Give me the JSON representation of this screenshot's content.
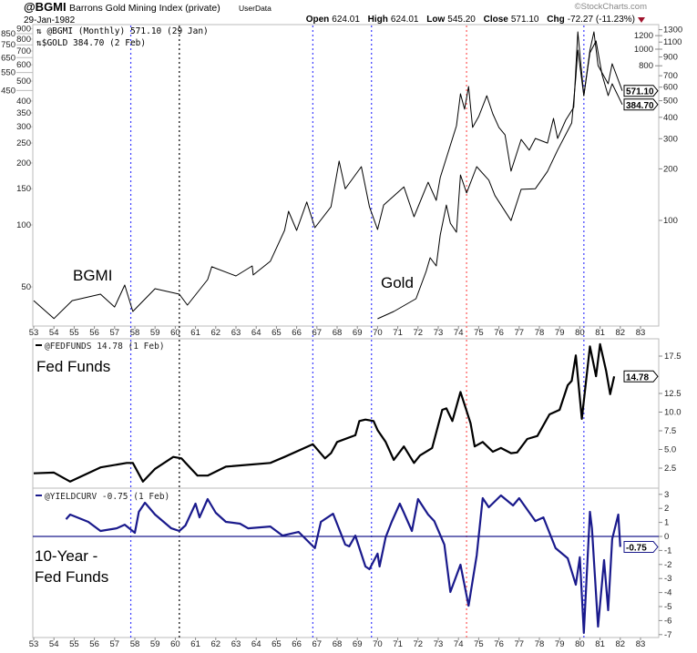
{
  "header": {
    "symbol": "@BGMI",
    "name": "Barrons Gold Mining Index (private)",
    "source": "UserData",
    "date": "29-Jan-1982",
    "copyright": "©StockCharts.com",
    "open_label": "Open",
    "open": "624.01",
    "high_label": "High",
    "high": "624.01",
    "low_label": "Low",
    "low": "545.20",
    "close_label": "Close",
    "close": "571.10",
    "chg_label": "Chg",
    "chg": "-72.27 (-11.23%)",
    "chg_direction": "down",
    "down_color": "#a0122b"
  },
  "chart_data": [
    {
      "type": "line",
      "panel": "price",
      "legend": [
        "@BGMI (Monthly) 571.10 (29 Jan)",
        "$GOLD 384.70 (2 Feb)"
      ],
      "annotations": [
        "BGMI",
        "Gold"
      ],
      "x_ticks": [
        "53",
        "54",
        "55",
        "56",
        "57",
        "58",
        "59",
        "60",
        "61",
        "62",
        "63",
        "64",
        "65",
        "66",
        "67",
        "68",
        "69",
        "70",
        "71",
        "72",
        "73",
        "74",
        "75",
        "76",
        "77",
        "78",
        "79",
        "80",
        "81",
        "82",
        "83"
      ],
      "xlim": [
        53,
        83
      ],
      "yscale": "log",
      "y_left_ticks": [
        900,
        850,
        800,
        750,
        700,
        650,
        600,
        550,
        500,
        450,
        400,
        350,
        300,
        250,
        200,
        150,
        100,
        50
      ],
      "y_right_ticks": [
        1300,
        1200,
        1100,
        1000,
        900,
        800,
        700,
        600,
        500,
        400,
        300,
        200,
        100
      ],
      "series": [
        {
          "name": "BGMI",
          "axis": "right",
          "color": "#000000",
          "last_label": "571.10",
          "x": [
            53.0,
            54.0,
            54.9,
            56.3,
            57.0,
            57.5,
            57.9,
            59.0,
            60.2,
            60.6,
            61.6,
            61.8,
            63.0,
            63.8,
            63.85,
            64.7,
            65.4,
            65.6,
            66.0,
            66.5,
            66.9,
            67.7,
            68.1,
            68.4,
            69.2,
            69.6,
            70.0,
            70.3,
            71.3,
            71.8,
            72.5,
            72.9,
            73.1,
            73.2,
            73.9,
            74.1,
            74.3,
            74.5,
            74.7,
            75.0,
            75.4,
            75.7,
            76.0,
            76.3,
            76.6,
            77.1,
            77.5,
            77.8,
            78.4,
            78.7,
            78.9,
            79.3,
            79.7,
            79.9,
            80.2,
            80.5,
            80.7,
            80.9,
            81.4,
            81.6,
            82.1
          ],
          "y": [
            34,
            26.7,
            34,
            37.1,
            31.2,
            41.9,
            29.4,
            39.9,
            37.1,
            32,
            45.1,
            53.6,
            47.4,
            54.2,
            48,
            57.7,
            87.4,
            113,
            87.4,
            128,
            90.7,
            120,
            222,
            153,
            206,
            120,
            88.5,
            123,
            157,
            105,
            167,
            131,
            178,
            194,
            357,
            549,
            446,
            605,
            349,
            404,
            535,
            419,
            349,
            316,
            194,
            297,
            257,
            301,
            283,
            394,
            301,
            385,
            457,
            1262,
            535,
            988,
            1262,
            802,
            628,
            822,
            571.1
          ]
        },
        {
          "name": "Gold",
          "axis": "left",
          "color": "#000000",
          "last_label": "384.70",
          "x": [
            70.0,
            70.8,
            71.9,
            72.4,
            72.6,
            72.9,
            73.1,
            73.4,
            73.6,
            73.9,
            74.1,
            74.4,
            74.9,
            75.5,
            75.8,
            76.6,
            77.1,
            77.8,
            78.4,
            78.9,
            79.6,
            79.8,
            79.9,
            80.2,
            80.5,
            80.8,
            81.1,
            81.4,
            81.6,
            82.1
          ],
          "y": [
            35,
            38,
            43.8,
            59.5,
            69.3,
            63.2,
            89.4,
            125,
            102,
            92.2,
            175,
            143,
            192,
            165,
            139,
            105,
            149,
            150,
            182,
            231,
            313,
            521,
            707,
            425,
            686,
            783,
            537,
            425,
            485,
            384.7
          ]
        }
      ]
    },
    {
      "type": "line",
      "panel": "fedfunds",
      "legend": "@FEDFUNDS 14.78 (1 Feb)",
      "annotation": "Fed Funds",
      "ylim": [
        0,
        20
      ],
      "y_ticks": [
        "17.5",
        "12.5",
        "10.0",
        "7.5",
        "5.0",
        "2.5"
      ],
      "series": [
        {
          "name": "@FEDFUNDS",
          "color": "#000000",
          "last_label": "14.78",
          "x": [
            53.0,
            54.0,
            54.8,
            56.3,
            57.6,
            57.9,
            58.4,
            59.0,
            59.9,
            60.3,
            61.1,
            61.6,
            62.5,
            64.7,
            65.4,
            66.8,
            67.4,
            67.7,
            68.0,
            68.9,
            69.1,
            69.4,
            69.8,
            70.0,
            70.4,
            70.8,
            71.3,
            71.8,
            72.1,
            72.7,
            73.2,
            73.4,
            73.7,
            74.1,
            74.6,
            74.8,
            75.2,
            75.7,
            76.1,
            76.6,
            76.9,
            77.4,
            77.9,
            78.5,
            79.0,
            79.4,
            79.6,
            79.8,
            80.1,
            80.5,
            80.8,
            81.0,
            81.3,
            81.5,
            81.7
          ],
          "y": [
            1.8,
            1.9,
            0.7,
            2.6,
            3.2,
            3.2,
            0.7,
            2.4,
            4.0,
            3.8,
            1.5,
            1.5,
            2.7,
            3.2,
            4.0,
            5.7,
            3.8,
            4.5,
            6.0,
            6.9,
            8.8,
            9.0,
            8.8,
            7.6,
            6.0,
            3.6,
            5.4,
            3.2,
            4.2,
            5.2,
            10.3,
            10.5,
            8.8,
            12.7,
            8.5,
            5.4,
            6.0,
            4.7,
            5.2,
            4.5,
            4.6,
            6.4,
            6.8,
            9.7,
            10.3,
            13.6,
            14.2,
            17.6,
            9.1,
            18.8,
            14.8,
            19.1,
            15.5,
            12.4,
            14.78
          ]
        }
      ]
    },
    {
      "type": "line",
      "panel": "yieldcurve",
      "legend": "@YIELDCURV -0.75 (1 Feb)",
      "annotation_lines": [
        "10-Year -",
        "Fed Funds"
      ],
      "ylim": [
        -7,
        3
      ],
      "y_ticks": [
        "3",
        "2",
        "1",
        "0",
        "-1",
        "-2",
        "-3",
        "-4",
        "-5",
        "-6",
        "-7"
      ],
      "reference_line": 0,
      "series": [
        {
          "name": "@YIELDCURV",
          "color": "#1a1a8c",
          "last_label": "-0.75",
          "x": [
            54.6,
            54.8,
            55.7,
            56.3,
            57.1,
            57.5,
            58.0,
            58.2,
            58.5,
            59.0,
            59.8,
            60.2,
            60.5,
            61.0,
            61.2,
            61.6,
            62.0,
            62.5,
            63.2,
            63.6,
            64.7,
            65.3,
            66.1,
            66.9,
            67.2,
            67.8,
            68.4,
            68.6,
            68.9,
            69.4,
            69.6,
            70.0,
            70.1,
            70.4,
            70.7,
            71.1,
            71.3,
            71.7,
            72.0,
            72.5,
            72.8,
            73.3,
            73.6,
            74.1,
            74.5,
            74.9,
            75.2,
            75.5,
            76.1,
            76.7,
            77.0,
            77.8,
            78.2,
            78.8,
            79.4,
            79.8,
            80.0,
            80.2,
            80.5,
            80.6,
            80.9,
            81.2,
            81.4,
            81.6,
            81.9,
            82.0
          ],
          "y": [
            1.23,
            1.56,
            1.04,
            0.39,
            0.58,
            0.84,
            0.26,
            1.75,
            2.4,
            1.56,
            0.58,
            0.39,
            0.78,
            2.34,
            1.36,
            2.66,
            1.69,
            1.04,
            0.91,
            0.58,
            0.71,
            0.06,
            0.32,
            -0.84,
            1.04,
            1.62,
            -0.58,
            -0.71,
            0.06,
            -2.14,
            -2.34,
            -1.23,
            -2.14,
            -0.06,
            1.04,
            2.34,
            1.69,
            0.39,
            2.66,
            1.56,
            1.1,
            -0.58,
            -3.96,
            -2.01,
            -4.94,
            -1.36,
            2.73,
            2.08,
            2.92,
            2.21,
            2.73,
            1.1,
            1.36,
            -0.84,
            -1.56,
            -3.44,
            -1.49,
            -6.88,
            1.75,
            0.58,
            -6.43,
            -1.69,
            -5.26,
            -0.19,
            1.56,
            -0.75
          ]
        }
      ]
    }
  ],
  "event_lines": [
    {
      "x": 57.8,
      "color": "#3a3aff"
    },
    {
      "x": 60.2,
      "color": "#000000"
    },
    {
      "x": 66.8,
      "color": "#3a3aff"
    },
    {
      "x": 69.7,
      "color": "#3a3aff"
    },
    {
      "x": 74.4,
      "color": "#ff5555"
    },
    {
      "x": 80.2,
      "color": "#3a3aff"
    }
  ]
}
